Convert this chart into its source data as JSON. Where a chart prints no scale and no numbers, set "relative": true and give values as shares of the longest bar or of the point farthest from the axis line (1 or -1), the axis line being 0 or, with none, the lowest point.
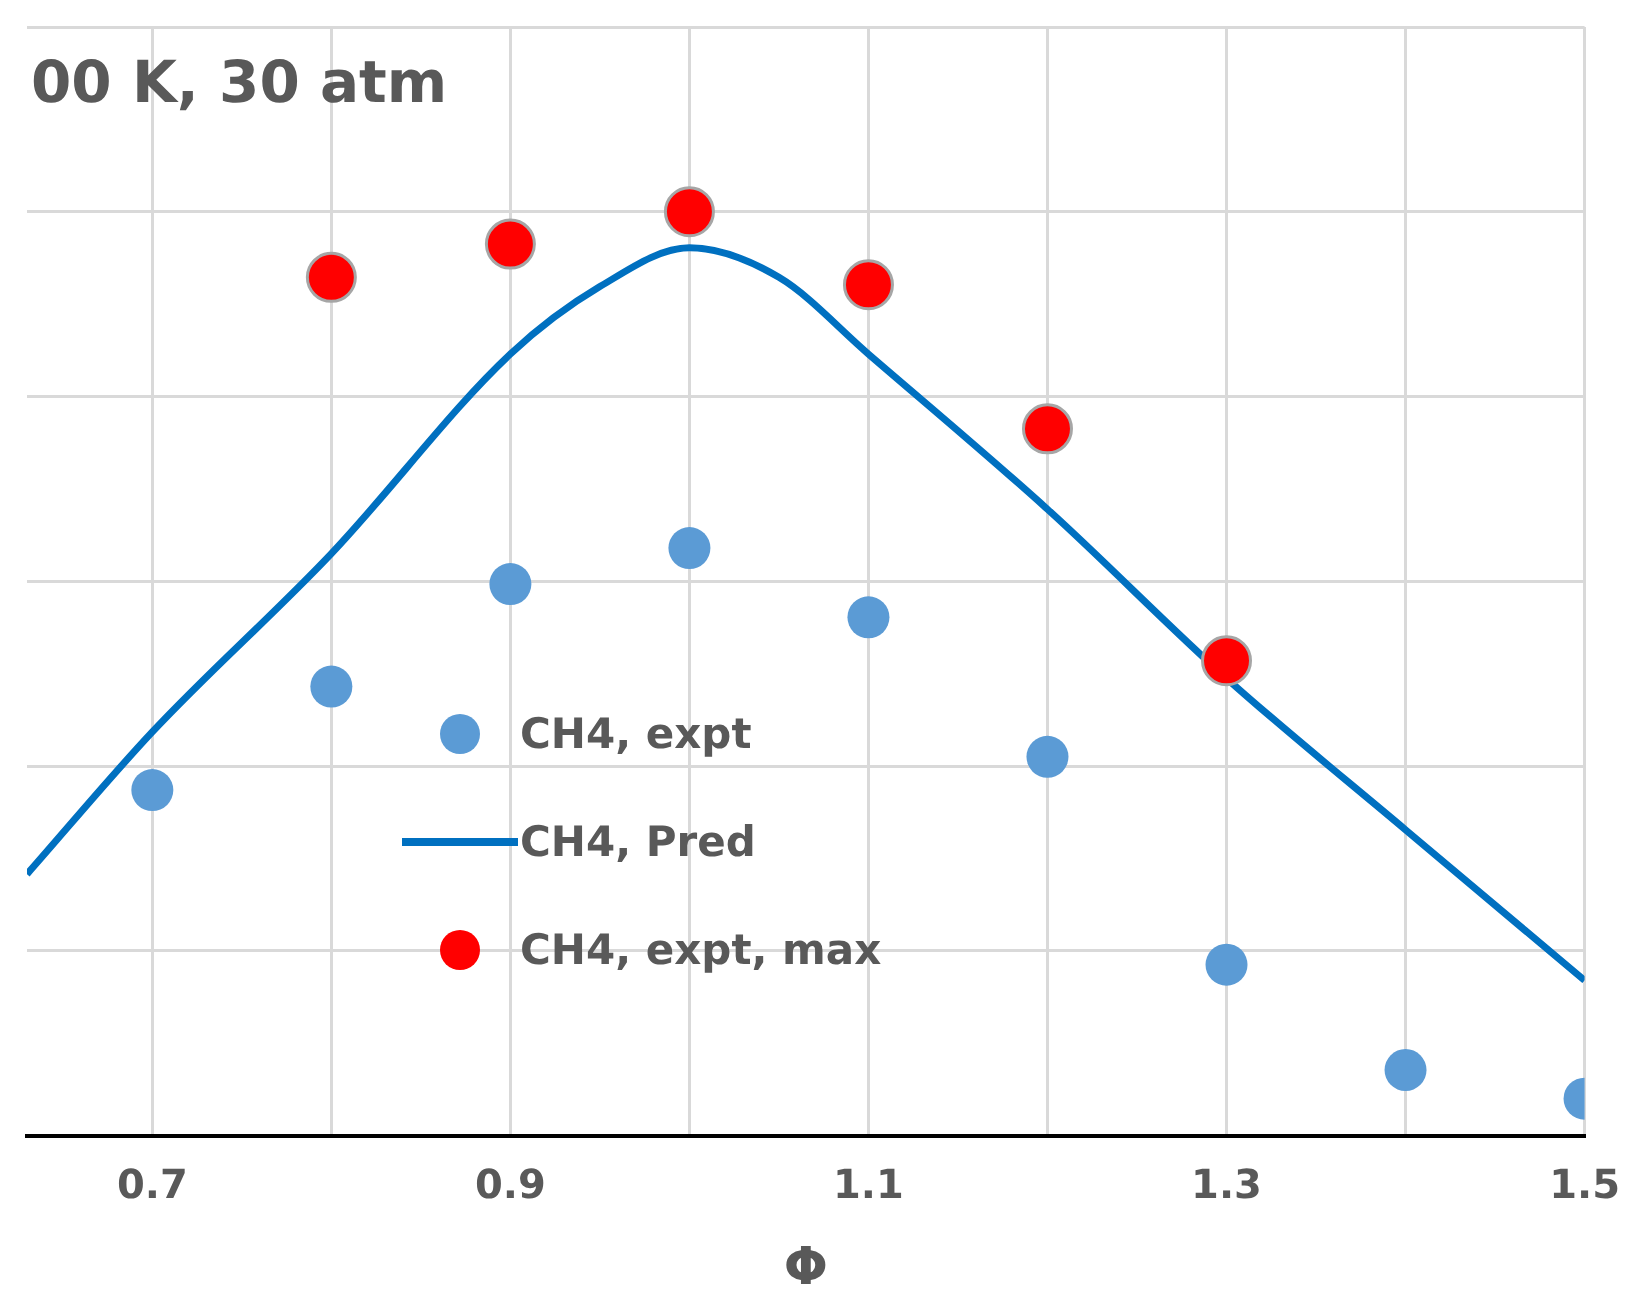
{
  "chart_data": {
    "type": "scatter",
    "relative": true,
    "xlabel": "Φ",
    "annotations": [
      "00 K, 30 atm"
    ],
    "xlim": [
      0.63,
      1.5
    ],
    "xticks": [
      0.7,
      {
        "value": 0.8,
        "label": null
      },
      0.9,
      {
        "value": 1.0,
        "label": null
      },
      1.1,
      {
        "value": 1.2,
        "label": null
      },
      1.3,
      {
        "value": 1.4,
        "label": null
      },
      1.5
    ],
    "grid": true,
    "legend": "bottom",
    "series": [
      {
        "name": "CH4, expt",
        "type": "scatter",
        "marker": "circle",
        "color": "#5b9bd5",
        "x": [
          0.7,
          0.8,
          0.9,
          1.0,
          1.1,
          1.2,
          1.3,
          1.4,
          1.5
        ],
        "values": [
          0.374,
          0.486,
          0.597,
          0.636,
          0.561,
          0.41,
          0.185,
          0.071,
          0.04
        ]
      },
      {
        "name": "CH4, Pred",
        "type": "line",
        "marker": "none",
        "line_style": "solid",
        "color": "#0070c0",
        "x": [
          0.63,
          0.7,
          0.8,
          0.9,
          0.95,
          1.0,
          1.05,
          1.1,
          1.2,
          1.3,
          1.4,
          1.5
        ],
        "values": [
          0.283,
          0.437,
          0.63,
          0.846,
          0.919,
          0.961,
          0.929,
          0.846,
          0.678,
          0.495,
          0.331,
          0.168
        ]
      },
      {
        "name": "CH4, expt, max",
        "type": "scatter",
        "marker": "circle",
        "color": "#ff0000",
        "x": [
          0.8,
          0.9,
          1.0,
          1.1,
          1.2,
          1.3
        ],
        "values": [
          0.929,
          0.965,
          1,
          0.921,
          0.765,
          0.514
        ]
      }
    ]
  }
}
